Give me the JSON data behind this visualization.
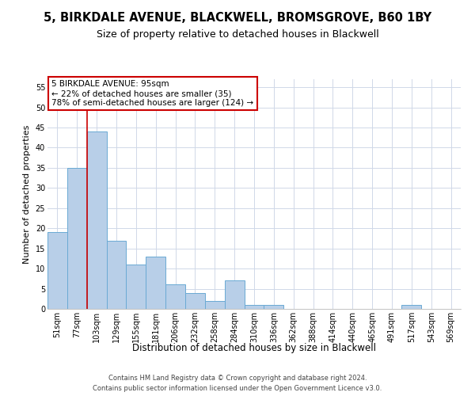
{
  "title1": "5, BIRKDALE AVENUE, BLACKWELL, BROMSGROVE, B60 1BY",
  "title2": "Size of property relative to detached houses in Blackwell",
  "xlabel": "Distribution of detached houses by size in Blackwell",
  "ylabel": "Number of detached properties",
  "categories": [
    "51sqm",
    "77sqm",
    "103sqm",
    "129sqm",
    "155sqm",
    "181sqm",
    "206sqm",
    "232sqm",
    "258sqm",
    "284sqm",
    "310sqm",
    "336sqm",
    "362sqm",
    "388sqm",
    "414sqm",
    "440sqm",
    "465sqm",
    "491sqm",
    "517sqm",
    "543sqm",
    "569sqm"
  ],
  "values": [
    19,
    35,
    44,
    17,
    11,
    13,
    6,
    4,
    2,
    7,
    1,
    1,
    0,
    0,
    0,
    0,
    0,
    0,
    1,
    0,
    0
  ],
  "bar_color": "#b8cfe8",
  "bar_edge_color": "#6aaad4",
  "vline_color": "#cc0000",
  "annotation_text": "5 BIRKDALE AVENUE: 95sqm\n← 22% of detached houses are smaller (35)\n78% of semi-detached houses are larger (124) →",
  "annotation_box_color": "#ffffff",
  "annotation_box_edge_color": "#cc0000",
  "ylim": [
    0,
    57
  ],
  "yticks": [
    0,
    5,
    10,
    15,
    20,
    25,
    30,
    35,
    40,
    45,
    50,
    55
  ],
  "footer1": "Contains HM Land Registry data © Crown copyright and database right 2024.",
  "footer2": "Contains public sector information licensed under the Open Government Licence v3.0.",
  "bg_color": "#ffffff",
  "grid_color": "#d0d8e8",
  "title_fontsize": 10.5,
  "subtitle_fontsize": 9,
  "tick_fontsize": 7,
  "ylabel_fontsize": 8,
  "xlabel_fontsize": 8.5,
  "footer_fontsize": 6,
  "annotation_fontsize": 7.5
}
